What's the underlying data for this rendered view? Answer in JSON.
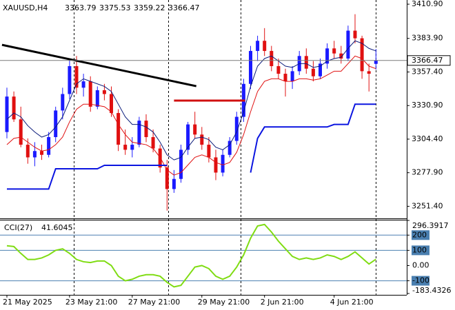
{
  "chart_data": {
    "type": "candlestick",
    "symbol": "XAUUSD,H4",
    "categories": [
      "21 May 2025",
      null,
      null,
      null,
      null,
      null,
      null,
      null,
      null,
      "23 May 21:00",
      null,
      null,
      null,
      null,
      null,
      null,
      null,
      null,
      "27 May 21:00",
      null,
      null,
      null,
      null,
      null,
      null,
      null,
      null,
      null,
      "29 May 21:00",
      null,
      null,
      null,
      null,
      null,
      null,
      null,
      null,
      "2 Jun 21:00",
      null,
      null,
      null,
      null,
      null,
      null,
      null,
      null,
      null,
      "4 Jun 21:00",
      null,
      null,
      null,
      null,
      null,
      null
    ],
    "open": [
      3310,
      3338,
      3320,
      3300,
      3290,
      3295,
      3292,
      3306,
      3327,
      3340,
      3362,
      3345,
      3350,
      3330,
      3343,
      3340,
      3325,
      3300,
      3296,
      3300,
      3319,
      3306,
      3297,
      3282,
      3265,
      3273,
      3296,
      3316,
      3308,
      3300,
      3290,
      3278,
      3292,
      3303,
      3322,
      3348,
      3374,
      3382,
      3374,
      3362,
      3356,
      3350,
      3358,
      3370,
      3360,
      3354,
      3364,
      3376,
      3372,
      3368,
      3390,
      3384,
      3358,
      3363.79
    ],
    "high": [
      3345,
      3342,
      3330,
      3305,
      3302,
      3300,
      3310,
      3330,
      3345,
      3368,
      3370,
      3356,
      3354,
      3346,
      3348,
      3346,
      3328,
      3312,
      3306,
      3322,
      3324,
      3312,
      3300,
      3288,
      3280,
      3300,
      3318,
      3326,
      3314,
      3306,
      3296,
      3296,
      3306,
      3326,
      3352,
      3378,
      3386,
      3392,
      3378,
      3368,
      3360,
      3362,
      3374,
      3376,
      3366,
      3368,
      3380,
      3382,
      3378,
      3394,
      3403,
      3386,
      3364,
      3375.53
    ],
    "low": [
      3305,
      3318,
      3298,
      3285,
      3283,
      3288,
      3290,
      3302,
      3320,
      3336,
      3340,
      3338,
      3326,
      3328,
      3335,
      3322,
      3295,
      3292,
      3290,
      3298,
      3302,
      3294,
      3278,
      3248,
      3262,
      3270,
      3292,
      3305,
      3296,
      3286,
      3272,
      3275,
      3290,
      3300,
      3318,
      3344,
      3366,
      3370,
      3358,
      3352,
      3338,
      3344,
      3355,
      3356,
      3350,
      3352,
      3360,
      3368,
      3364,
      3366,
      3380,
      3352,
      3342,
      3359.22
    ],
    "close": [
      3338,
      3320,
      3300,
      3290,
      3295,
      3292,
      3306,
      3327,
      3340,
      3362,
      3345,
      3350,
      3330,
      3343,
      3340,
      3325,
      3300,
      3296,
      3300,
      3319,
      3306,
      3297,
      3282,
      3265,
      3273,
      3296,
      3316,
      3308,
      3300,
      3290,
      3278,
      3292,
      3303,
      3322,
      3348,
      3374,
      3382,
      3374,
      3362,
      3356,
      3350,
      3358,
      3370,
      3360,
      3354,
      3364,
      3376,
      3372,
      3368,
      3390,
      3384,
      3358,
      3356,
      3366.47
    ],
    "up_color": "#1a1aff",
    "down_color": "#e01010",
    "ylim": [
      3242.4,
      3414.2
    ],
    "yticks": [
      {
        "value": 3410.9,
        "label": "3410.90"
      },
      {
        "value": 3383.9,
        "label": "3383.90"
      },
      {
        "value": 3357.4,
        "label": "3357.40"
      },
      {
        "value": 3330.9,
        "label": "3330.90"
      },
      {
        "value": 3304.4,
        "label": "3304.40"
      },
      {
        "value": 3277.9,
        "label": "3277.90"
      },
      {
        "value": 3251.4,
        "label": "3251.40"
      }
    ],
    "lines": [
      {
        "color": "#0a1a7a",
        "width": 1,
        "values": [
          3320,
          3325,
          3322,
          3315,
          3310,
          3306,
          3308,
          3314,
          3322,
          3335,
          3348,
          3352,
          3350,
          3348,
          3346,
          3342,
          3332,
          3322,
          3316,
          3316,
          3314,
          3310,
          3302,
          3292,
          3288,
          3290,
          3298,
          3305,
          3306,
          3304,
          3298,
          3296,
          3300,
          3310,
          3326,
          3346,
          3362,
          3368,
          3370,
          3366,
          3362,
          3361,
          3364,
          3364,
          3361,
          3362,
          3366,
          3368,
          3369,
          3376,
          3382,
          3380,
          3376,
          3374
        ]
      },
      {
        "color": "#e01010",
        "width": 1,
        "values": [
          3300,
          3305,
          3306,
          3302,
          3298,
          3295,
          3296,
          3300,
          3306,
          3318,
          3328,
          3332,
          3332,
          3331,
          3330,
          3326,
          3316,
          3308,
          3302,
          3301,
          3300,
          3297,
          3290,
          3280,
          3276,
          3278,
          3284,
          3290,
          3292,
          3290,
          3286,
          3284,
          3286,
          3294,
          3308,
          3326,
          3342,
          3350,
          3352,
          3352,
          3350,
          3350,
          3352,
          3352,
          3351,
          3352,
          3355,
          3358,
          3358,
          3364,
          3370,
          3368,
          3362,
          3360
        ]
      },
      {
        "color": "#0a14e0",
        "width": 2,
        "values": [
          3265,
          3265,
          3265,
          3265,
          3265,
          3265,
          3265,
          3281,
          3281,
          3281,
          3281,
          3281,
          3281,
          3281,
          3283.7,
          3283.7,
          3283.7,
          3283.7,
          3283.7,
          3283.7,
          3283.7,
          3283.7,
          3283.7,
          3283.7,
          null,
          null,
          null,
          null,
          null,
          null,
          null,
          null,
          null,
          null,
          null,
          3278,
          3305,
          3314,
          3314,
          3314,
          3314,
          3314,
          3314,
          3314,
          3314,
          3314,
          3314,
          3316,
          3316,
          3316,
          3332,
          3332,
          3332,
          3332
        ]
      }
    ],
    "trendlines": [
      {
        "color": "#000000",
        "x": [
          -0.7,
          27.2
        ],
        "values": [
          3378.8,
          3346.2
        ]
      },
      {
        "color": "#d01010",
        "x": [
          24,
          34.2
        ],
        "values": [
          3334.8,
          3334.8
        ]
      }
    ],
    "cci": {
      "name": "CCI(27)",
      "color": "#7fdc12",
      "values": [
        130,
        125,
        80,
        40,
        40,
        50,
        70,
        100,
        110,
        80,
        40,
        25,
        20,
        30,
        30,
        0,
        -70,
        -100,
        -90,
        -70,
        -60,
        -60,
        -70,
        -110,
        -140,
        -130,
        -70,
        -10,
        0,
        -20,
        -70,
        -90,
        -70,
        -10,
        70,
        180,
        260,
        270,
        220,
        160,
        110,
        60,
        40,
        50,
        40,
        50,
        70,
        60,
        40,
        60,
        90,
        50,
        10,
        41.6045
      ],
      "ylim": [
        -183.4326,
        296.3917
      ],
      "yticks": [
        296.3917,
        200,
        100,
        {
          "value": 0,
          "label": "0.00"
        },
        -100,
        -183.4326
      ]
    }
  }
}
